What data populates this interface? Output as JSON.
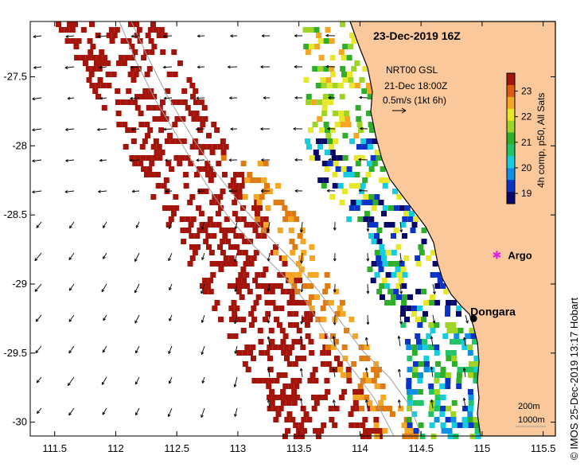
{
  "title": "23-Dec-2019 16Z",
  "credit": "© IMOS 25-Dec-2019 13:17 Hobart",
  "current_legend": {
    "line1": "NRT00 GSL",
    "line2": "21-Dec 18:00Z",
    "line3": "0.5m/s (1kt 6h)"
  },
  "colorbar": {
    "label": "4h comp, p50, All Sats",
    "ticks": [
      "23",
      "22",
      "21",
      "20",
      "19"
    ],
    "range": [
      18.6,
      23.7
    ],
    "colors": [
      "#08086b",
      "#0a34c8",
      "#0f8fe6",
      "#16cde0",
      "#22c46a",
      "#2fae2a",
      "#9ed424",
      "#e8e82a",
      "#f5a623",
      "#e05a0e",
      "#a5140a"
    ]
  },
  "axes": {
    "x_ticks": [
      "111.5",
      "112",
      "112.5",
      "113",
      "113.5",
      "114",
      "114.5",
      "115",
      "115.5"
    ],
    "y_ticks": [
      "-27.5",
      "-28",
      "-28.5",
      "-29",
      "-29.5",
      "-30"
    ],
    "lon_range": [
      111.3,
      115.6
    ],
    "lat_range": [
      -30.1,
      -27.1
    ]
  },
  "depth_legend": {
    "line1": "200m",
    "line2": "1000m"
  },
  "places": [
    {
      "name": "Dongara",
      "lon": 114.93,
      "lat": -29.25,
      "marker": "dot",
      "color": "#000000"
    },
    {
      "name": "Argo",
      "lon": 115.12,
      "lat": -28.79,
      "marker": "star",
      "color": "#e020e0"
    }
  ],
  "land_color": "#fac89a"
}
